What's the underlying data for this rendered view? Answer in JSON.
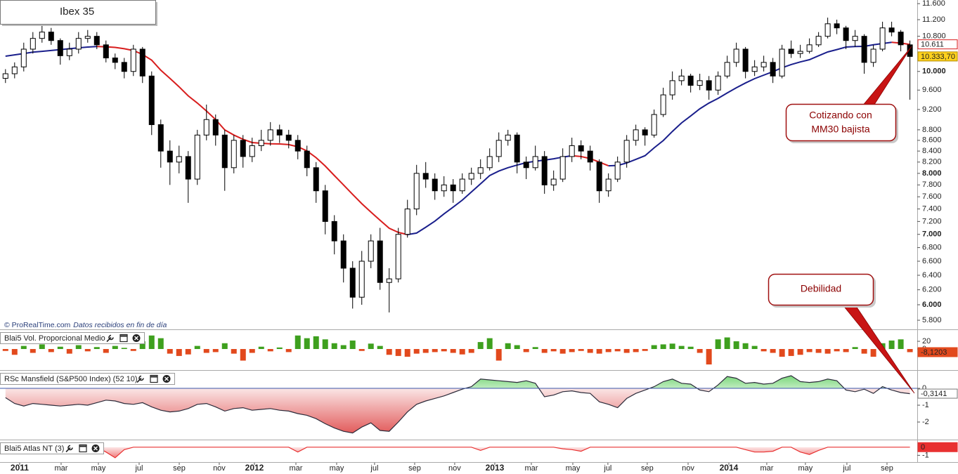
{
  "chart_data": {
    "type": "candlestick",
    "title": "Ibex 35",
    "source": "© ProRealTime.com",
    "source_note": "Datos recibidos en fin de día",
    "log_scale": true,
    "xlim": [
      -0.6,
      99.8
    ],
    "xticks": [
      {
        "value": 1.55,
        "label": "2011"
      },
      {
        "value": 6.09,
        "label": "mar"
      },
      {
        "value": 10.17,
        "label": "may"
      },
      {
        "value": 14.63,
        "label": "jul"
      },
      {
        "value": 19.02,
        "label": "sep"
      },
      {
        "value": 23.4,
        "label": "nov"
      },
      {
        "value": 27.25,
        "label": "2012"
      },
      {
        "value": 31.79,
        "label": "mar"
      },
      {
        "value": 36.25,
        "label": "may"
      },
      {
        "value": 40.4,
        "label": "jul"
      },
      {
        "value": 44.79,
        "label": "sep"
      },
      {
        "value": 49.17,
        "label": "nov"
      },
      {
        "value": 53.56,
        "label": "2013"
      },
      {
        "value": 57.56,
        "label": "mar"
      },
      {
        "value": 62.1,
        "label": "may"
      },
      {
        "value": 65.94,
        "label": "jul"
      },
      {
        "value": 70.25,
        "label": "sep"
      },
      {
        "value": 74.72,
        "label": "nov"
      },
      {
        "value": 79.18,
        "label": "2014"
      },
      {
        "value": 83.33,
        "label": "mar"
      },
      {
        "value": 87.56,
        "label": "may"
      },
      {
        "value": 92.1,
        "label": "jul"
      },
      {
        "value": 96.49,
        "label": "sep"
      }
    ],
    "ylim": [
      5703,
      11693
    ],
    "yticks": [
      {
        "value": 5800,
        "label": "5.800"
      },
      {
        "value": 6000,
        "label": "6.000"
      },
      {
        "value": 6200,
        "label": "6.200"
      },
      {
        "value": 6400,
        "label": "6.400"
      },
      {
        "value": 6600,
        "label": "6.600"
      },
      {
        "value": 6800,
        "label": "6.800"
      },
      {
        "value": 7000,
        "label": "7.000"
      },
      {
        "value": 7200,
        "label": "7.200"
      },
      {
        "value": 7400,
        "label": "7.400"
      },
      {
        "value": 7600,
        "label": "7.600"
      },
      {
        "value": 7800,
        "label": "7.800"
      },
      {
        "value": 8000,
        "label": "8.000"
      },
      {
        "value": 8200,
        "label": "8.200"
      },
      {
        "value": 8400,
        "label": "8.400"
      },
      {
        "value": 8600,
        "label": "8.600"
      },
      {
        "value": 8800,
        "label": "8.800"
      },
      {
        "value": 9200,
        "label": "9.200"
      },
      {
        "value": 9600,
        "label": "9.600"
      },
      {
        "value": 10000,
        "label": "10.000"
      },
      {
        "value": 10800,
        "label": "10.800"
      },
      {
        "value": 11200,
        "label": "11.200"
      },
      {
        "value": 11600,
        "label": "11.600"
      }
    ],
    "up_color": "#ffffff",
    "down_color": "#000000",
    "open": [
      9850,
      9950,
      10100,
      10500,
      10750,
      10900,
      10700,
      10350,
      10500,
      10750,
      10800,
      10600,
      10300,
      10200,
      10000,
      10500,
      9900,
      8900,
      8400,
      8200,
      8300,
      7900,
      8700,
      9000,
      8700,
      8100,
      8600,
      8300,
      8500,
      8600,
      8800,
      8700,
      8600,
      8400,
      8100,
      7700,
      7200,
      6900,
      6500,
      6100,
      6600,
      6900,
      6300,
      6350,
      7000,
      7400,
      8000,
      7900,
      7700,
      7800,
      7700,
      7900,
      8000,
      8100,
      8300,
      8600,
      8700,
      8200,
      8100,
      8300,
      7800,
      7900,
      8300,
      8500,
      8400,
      8200,
      7700,
      7900,
      8200,
      8600,
      8800,
      8700,
      9100,
      9500,
      9800,
      9900,
      9700,
      9800,
      9600,
      9900,
      10200,
      10500,
      10000,
      10100,
      10200,
      9900,
      10500,
      10400,
      10450,
      10600,
      10800,
      11100,
      11000,
      10700,
      10800,
      10200,
      10500,
      11000,
      10900,
      10600
    ],
    "high": [
      10050,
      10200,
      10650,
      10900,
      11050,
      11000,
      10750,
      10650,
      10900,
      10950,
      10900,
      10700,
      10400,
      10300,
      10600,
      10550,
      10000,
      9000,
      8600,
      8500,
      8400,
      8800,
      9300,
      9100,
      8800,
      8700,
      8700,
      8650,
      8800,
      8950,
      8900,
      8800,
      8700,
      8500,
      8200,
      7800,
      7300,
      7000,
      6600,
      6750,
      7000,
      7100,
      6500,
      7100,
      7550,
      8150,
      8200,
      8000,
      7950,
      7900,
      8000,
      8100,
      8250,
      8450,
      8750,
      8800,
      8750,
      8300,
      8500,
      8400,
      8050,
      8450,
      8650,
      8600,
      8500,
      8250,
      8000,
      8300,
      8700,
      8900,
      8850,
      9200,
      9650,
      10000,
      10050,
      9950,
      9950,
      9900,
      10000,
      10350,
      10650,
      10550,
      10250,
      10350,
      10300,
      10600,
      10700,
      10600,
      10750,
      10900,
      11250,
      11200,
      11050,
      10950,
      10850,
      10600,
      11150,
      11150,
      10950,
      10700
    ],
    "low": [
      9750,
      9850,
      10000,
      10400,
      10650,
      10600,
      10150,
      10250,
      10400,
      10650,
      10500,
      10200,
      10050,
      9850,
      9900,
      9750,
      8700,
      8100,
      7800,
      8000,
      7500,
      7800,
      8600,
      8500,
      7700,
      8000,
      8100,
      8200,
      8400,
      8500,
      8550,
      8450,
      8250,
      7950,
      7500,
      7000,
      6700,
      6300,
      5950,
      6000,
      6500,
      6200,
      5900,
      6300,
      6950,
      7300,
      7750,
      7550,
      7600,
      7500,
      7650,
      7800,
      7900,
      8050,
      8200,
      8500,
      8000,
      7900,
      8050,
      7650,
      7700,
      7850,
      8200,
      8250,
      8050,
      7500,
      7600,
      7850,
      8100,
      8500,
      8500,
      8650,
      9050,
      9400,
      9700,
      9550,
      9600,
      9400,
      9500,
      9850,
      10100,
      9850,
      9900,
      10000,
      9750,
      9850,
      10300,
      10300,
      10400,
      10550,
      10750,
      10850,
      10500,
      10550,
      9950,
      10100,
      10450,
      10800,
      10450,
      9400
    ],
    "close": [
      9950,
      10100,
      10500,
      10750,
      10900,
      10700,
      10350,
      10500,
      10750,
      10800,
      10600,
      10300,
      10200,
      10000,
      10500,
      9900,
      8900,
      8400,
      8200,
      8300,
      7900,
      8700,
      9000,
      8700,
      8100,
      8600,
      8300,
      8500,
      8600,
      8800,
      8700,
      8600,
      8400,
      8100,
      7700,
      7200,
      6900,
      6500,
      6100,
      6600,
      6900,
      6300,
      6350,
      7000,
      7400,
      8000,
      7900,
      7700,
      7800,
      7700,
      7900,
      8000,
      8100,
      8300,
      8600,
      8700,
      8200,
      8100,
      8300,
      7800,
      7900,
      8300,
      8500,
      8400,
      8200,
      7700,
      7900,
      8200,
      8600,
      8800,
      8700,
      9100,
      9500,
      9800,
      9900,
      9700,
      9800,
      9600,
      9900,
      10200,
      10500,
      10000,
      10100,
      10200,
      9900,
      10500,
      10400,
      10450,
      10600,
      10800,
      11100,
      11000,
      10700,
      10800,
      10200,
      10500,
      11000,
      10900,
      10600,
      10333.7
    ],
    "last_close_label": "10.333,70",
    "last_close_color": "#ffd21f",
    "moving_average": {
      "values": [
        10339,
        10370,
        10400,
        10430,
        10450,
        10470,
        10490,
        10510,
        10530,
        10548,
        10560,
        10555,
        10540,
        10510,
        10468,
        10380,
        10250,
        10027,
        9850,
        9670,
        9480,
        9330,
        9170,
        9000,
        8798,
        8700,
        8620,
        8558,
        8545,
        8535,
        8532,
        8520,
        8480,
        8403,
        8280,
        8130,
        7961,
        7800,
        7640,
        7487,
        7350,
        7220,
        7094,
        7030,
        6996,
        7020,
        7110,
        7205,
        7320,
        7430,
        7544,
        7680,
        7820,
        7961,
        8040,
        8100,
        8146,
        8190,
        8215,
        8236,
        8260,
        8290,
        8316,
        8300,
        8263,
        8200,
        8133,
        8140,
        8184,
        8250,
        8316,
        8460,
        8597,
        8770,
        8935,
        9070,
        9213,
        9330,
        9427,
        9540,
        9648,
        9750,
        9843,
        9920,
        9995,
        10080,
        10152,
        10210,
        10261,
        10350,
        10435,
        10490,
        10548,
        10560,
        10565,
        10600,
        10630,
        10660,
        10640,
        10611
      ],
      "rising_color": "#1a1f8c",
      "falling_color": "#d81e1e",
      "last_label": "10.611"
    },
    "annotations": [
      {
        "lines": [
          "Cotizando con",
          "MM30 bajista"
        ]
      },
      {
        "lines": [
          "Debilidad"
        ]
      }
    ],
    "panels": [
      {
        "type": "bar",
        "title": "Blai5 Vol. Proporcional Medio",
        "ylim": [
          -50.9,
          45.5
        ],
        "yticks": [
          20,
          0
        ],
        "positive_color": "#3ea01e",
        "negative_color": "#e2491d",
        "values": [
          -5,
          -15,
          8,
          -10,
          12,
          -8,
          6,
          -12,
          10,
          -6,
          5,
          -10,
          8,
          3,
          -5,
          20,
          35,
          28,
          -12,
          -18,
          -14,
          8,
          -10,
          -8,
          15,
          -12,
          -30,
          -10,
          6,
          -6,
          4,
          -8,
          35,
          28,
          33,
          25,
          15,
          10,
          22,
          -5,
          14,
          8,
          -15,
          -18,
          -20,
          -12,
          -10,
          -8,
          -6,
          -10,
          -14,
          -10,
          18,
          28,
          -30,
          15,
          10,
          -8,
          5,
          -10,
          -6,
          -12,
          -8,
          -5,
          -10,
          -12,
          -8,
          -6,
          -10,
          -8,
          -5,
          10,
          12,
          14,
          8,
          6,
          -10,
          -40,
          25,
          30,
          20,
          15,
          8,
          -6,
          -10,
          -20,
          -18,
          -15,
          -8,
          -10,
          -12,
          -6,
          -8,
          5,
          -12,
          -20,
          15,
          22,
          25,
          -8.1203
        ],
        "last_label": "-8,1203",
        "last_label_color": "#e2491d"
      },
      {
        "type": "area",
        "title": "RSc Mansfield (S&P500 Index) (52 10)",
        "ylim": [
          -3.0,
          0.96
        ],
        "yticks": [
          0,
          -1,
          -2
        ],
        "positive_color": "#4cc94c",
        "negative_color": "#d92a2a",
        "line_color": "#2b2b3a",
        "zero_line_color": "#3a55a8",
        "values": [
          -0.55,
          -0.9,
          -1.05,
          -0.9,
          -0.95,
          -1.0,
          -1.05,
          -1.0,
          -0.95,
          -1.0,
          -0.85,
          -0.7,
          -0.75,
          -0.9,
          -0.95,
          -0.85,
          -1.1,
          -1.3,
          -1.4,
          -1.35,
          -1.2,
          -0.95,
          -0.9,
          -1.1,
          -1.35,
          -1.2,
          -1.15,
          -1.3,
          -1.25,
          -1.2,
          -1.3,
          -1.35,
          -1.5,
          -1.6,
          -1.8,
          -2.1,
          -2.35,
          -2.55,
          -2.65,
          -2.3,
          -2.05,
          -2.5,
          -2.55,
          -2.0,
          -1.4,
          -0.95,
          -0.75,
          -0.6,
          -0.45,
          -0.25,
          -0.05,
          0.1,
          0.55,
          0.5,
          0.45,
          0.4,
          0.35,
          0.45,
          0.3,
          -0.5,
          -0.4,
          -0.2,
          -0.15,
          -0.25,
          -0.3,
          -0.8,
          -0.95,
          -1.15,
          -0.6,
          -0.3,
          -0.1,
          0.1,
          0.4,
          0.55,
          0.3,
          0.25,
          -0.1,
          -0.2,
          0.2,
          0.7,
          0.6,
          0.3,
          0.35,
          0.25,
          0.3,
          0.6,
          0.75,
          0.4,
          0.35,
          0.4,
          0.55,
          0.45,
          -0.1,
          -0.2,
          -0.05,
          -0.3,
          0.1,
          -0.1,
          -0.25,
          -0.3141
        ],
        "last_label": "-0,3141",
        "last_label_color": "#ffffff"
      },
      {
        "type": "area",
        "title": "Blai5 Atlas NT (3)",
        "ylim": [
          -1.83,
          0.67
        ],
        "yticks": [
          -1
        ],
        "negative_color": "#e83030",
        "line_color": "#e83030",
        "values": [
          0,
          0,
          0,
          0,
          0,
          0,
          0,
          0,
          0,
          0,
          0,
          -0.6,
          -1.3,
          -0.3,
          0,
          0,
          0,
          0,
          0,
          0,
          0,
          0,
          0,
          0,
          0,
          0,
          0,
          0,
          0,
          0,
          0,
          0,
          -0.6,
          0,
          0,
          0,
          0,
          0,
          0,
          0,
          0,
          0,
          0,
          0,
          0,
          0,
          0,
          0,
          0,
          0,
          0,
          0,
          -0.4,
          0,
          0,
          0,
          0,
          0,
          0,
          0,
          0,
          -0.2,
          -0.3,
          -0.5,
          0,
          0,
          0,
          0,
          0,
          0,
          0,
          0,
          0,
          0,
          0,
          0,
          0,
          0,
          0,
          0,
          0,
          -0.3,
          -0.6,
          -0.6,
          -0.5,
          0,
          0,
          -0.6,
          -0.9,
          -0.4,
          0,
          0,
          0,
          0,
          0,
          0,
          0,
          0,
          0,
          0
        ],
        "last_label": "0",
        "last_label_color": "#e83030"
      }
    ]
  }
}
